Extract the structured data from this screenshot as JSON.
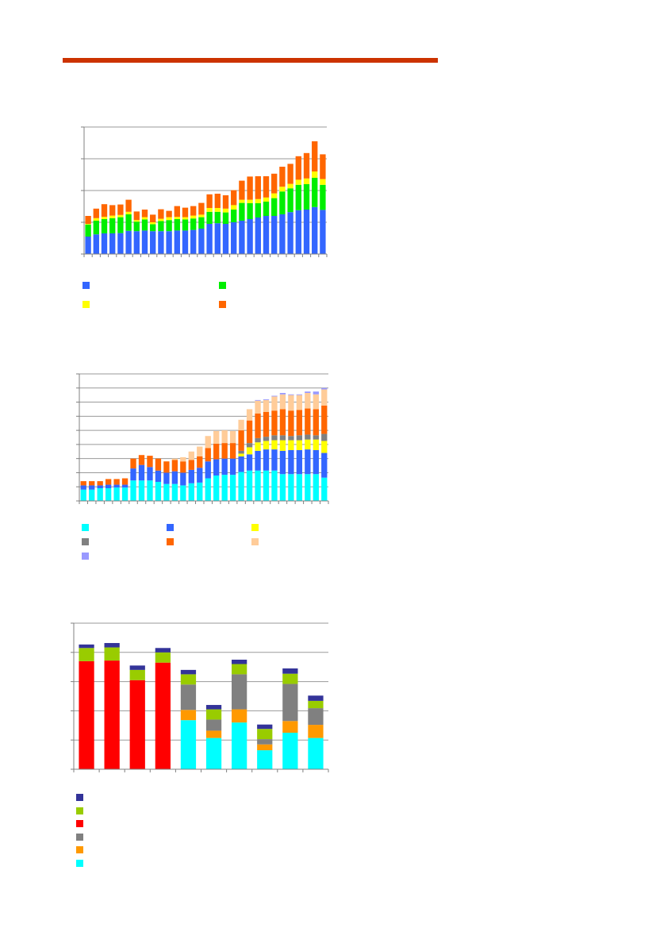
{
  "page": {
    "accent_color": "#cc3300"
  },
  "chart_data": [
    {
      "type": "bar",
      "stacked": true,
      "grid": true,
      "ylim": [
        0,
        4
      ],
      "legend_position": "bottom",
      "legend_ncol": 2,
      "categories": [
        "",
        "",
        "",
        "",
        "",
        "",
        "",
        "",
        "",
        "",
        "",
        "",
        "",
        "",
        "",
        "",
        "",
        "",
        "",
        "",
        "",
        "",
        "",
        "",
        "",
        "",
        "",
        "",
        "",
        ""
      ],
      "series": [
        {
          "color": "#3366ff",
          "values": [
            0.55,
            0.62,
            0.65,
            0.65,
            0.66,
            0.73,
            0.72,
            0.74,
            0.72,
            0.72,
            0.72,
            0.74,
            0.74,
            0.76,
            0.8,
            0.95,
            0.97,
            0.95,
            1.0,
            1.05,
            1.1,
            1.15,
            1.2,
            1.2,
            1.25,
            1.32,
            1.38,
            1.4,
            1.48,
            1.39
          ]
        },
        {
          "color": "#00ee00",
          "values": [
            0.38,
            0.43,
            0.45,
            0.48,
            0.5,
            0.52,
            0.3,
            0.35,
            0.22,
            0.32,
            0.35,
            0.36,
            0.35,
            0.36,
            0.36,
            0.38,
            0.36,
            0.36,
            0.4,
            0.56,
            0.5,
            0.45,
            0.45,
            0.56,
            0.72,
            0.75,
            0.8,
            0.8,
            0.92,
            0.79
          ]
        },
        {
          "color": "#ffff00",
          "values": [
            0.02,
            0.08,
            0.07,
            0.08,
            0.07,
            0.08,
            0.05,
            0.07,
            0.06,
            0.07,
            0.09,
            0.07,
            0.07,
            0.09,
            0.08,
            0.12,
            0.12,
            0.12,
            0.14,
            0.1,
            0.11,
            0.13,
            0.13,
            0.15,
            0.15,
            0.14,
            0.16,
            0.18,
            0.2,
            0.18
          ]
        },
        {
          "color": "#ff6600",
          "values": [
            0.25,
            0.3,
            0.4,
            0.33,
            0.33,
            0.38,
            0.27,
            0.24,
            0.24,
            0.3,
            0.2,
            0.34,
            0.3,
            0.3,
            0.37,
            0.43,
            0.45,
            0.42,
            0.47,
            0.6,
            0.73,
            0.72,
            0.67,
            0.62,
            0.63,
            0.63,
            0.74,
            0.8,
            0.95,
            0.78
          ]
        }
      ],
      "legend": [
        "",
        "",
        "",
        ""
      ]
    },
    {
      "type": "bar",
      "stacked": true,
      "grid": true,
      "ylim": [
        0,
        9
      ],
      "legend_position": "bottom",
      "legend_ncol": 3,
      "categories": [
        "",
        "",
        "",
        "",
        "",
        "",
        "",
        "",
        "",
        "",
        "",
        "",
        "",
        "",
        "",
        "",
        "",
        "",
        "",
        "",
        "",
        "",
        "",
        "",
        "",
        "",
        "",
        "",
        "",
        ""
      ],
      "series": [
        {
          "color": "#00ffff",
          "values": [
            0.8,
            0.8,
            0.9,
            0.9,
            0.95,
            0.95,
            1.45,
            1.45,
            1.45,
            1.35,
            1.2,
            1.2,
            1.1,
            1.25,
            1.3,
            1.6,
            1.8,
            1.85,
            1.85,
            2.05,
            2.15,
            2.15,
            2.15,
            2.15,
            1.9,
            1.9,
            1.9,
            1.9,
            1.9,
            1.65
          ]
        },
        {
          "color": "#3366ff",
          "values": [
            0.3,
            0.3,
            0.2,
            0.25,
            0.2,
            0.2,
            0.85,
            1.1,
            0.95,
            0.8,
            0.8,
            0.9,
            0.9,
            0.95,
            1.05,
            1.2,
            1.15,
            1.15,
            1.15,
            1.1,
            1.15,
            1.4,
            1.5,
            1.5,
            1.65,
            1.7,
            1.7,
            1.75,
            1.7,
            1.75
          ]
        },
        {
          "color": "#ffff00",
          "values": [
            0.0,
            0.0,
            0.0,
            0.0,
            0.0,
            0.0,
            0.0,
            0.0,
            0.0,
            0.0,
            0.0,
            0.0,
            0.0,
            0.0,
            0.0,
            0.0,
            0.0,
            0.0,
            0.0,
            0.2,
            0.5,
            0.6,
            0.6,
            0.65,
            0.75,
            0.7,
            0.7,
            0.7,
            0.75,
            0.85
          ]
        },
        {
          "color": "#808080",
          "values": [
            0.0,
            0.0,
            0.0,
            0.0,
            0.0,
            0.0,
            0.0,
            0.0,
            0.0,
            0.0,
            0.0,
            0.0,
            0.0,
            0.0,
            0.0,
            0.0,
            0.0,
            0.0,
            0.0,
            0.2,
            0.3,
            0.3,
            0.3,
            0.35,
            0.35,
            0.3,
            0.35,
            0.35,
            0.3,
            0.5
          ]
        },
        {
          "color": "#ff6600",
          "values": [
            0.3,
            0.3,
            0.3,
            0.4,
            0.4,
            0.45,
            0.7,
            0.7,
            0.8,
            0.85,
            0.8,
            0.8,
            0.8,
            0.7,
            0.8,
            0.95,
            1.1,
            1.1,
            1.1,
            1.45,
            1.6,
            1.75,
            1.75,
            1.75,
            1.85,
            1.8,
            1.8,
            1.85,
            1.85,
            2.0
          ]
        },
        {
          "color": "#ffcc99",
          "values": [
            0.0,
            0.0,
            0.0,
            0.0,
            0.0,
            0.0,
            0.0,
            0.0,
            0.0,
            0.0,
            0.0,
            0.1,
            0.3,
            0.6,
            0.7,
            0.85,
            0.9,
            0.9,
            0.85,
            0.75,
            0.8,
            0.9,
            0.85,
            1.0,
            1.05,
            1.1,
            1.05,
            1.1,
            1.05,
            1.15
          ]
        },
        {
          "color": "#9999ff",
          "values": [
            0.0,
            0.0,
            0.0,
            0.0,
            0.0,
            0.0,
            0.0,
            0.0,
            0.0,
            0.0,
            0.0,
            0.0,
            0.0,
            0.0,
            0.0,
            0.0,
            0.0,
            0.0,
            0.0,
            0.0,
            0.0,
            0.05,
            0.05,
            0.05,
            0.1,
            0.05,
            0.05,
            0.1,
            0.2,
            0.1
          ]
        }
      ],
      "legend": [
        "",
        "",
        "",
        "",
        "",
        "",
        ""
      ]
    },
    {
      "type": "bar",
      "stacked": true,
      "grid": true,
      "ylim": [
        0,
        5
      ],
      "legend_position": "bottom",
      "legend_ncol": 1,
      "categories": [
        "",
        "",
        "",
        "",
        "",
        "",
        "",
        "",
        "",
        ""
      ],
      "series": [
        {
          "color": "#00ffff",
          "values": [
            0,
            0,
            0,
            0,
            1.68,
            1.07,
            1.6,
            0.65,
            1.25,
            1.07
          ]
        },
        {
          "color": "#ff9900",
          "values": [
            0,
            0,
            0,
            0,
            0.35,
            0.25,
            0.45,
            0.2,
            0.4,
            0.45
          ]
        },
        {
          "color": "#808080",
          "values": [
            0,
            0,
            0,
            0,
            0.87,
            0.38,
            1.2,
            0.18,
            1.27,
            0.57
          ]
        },
        {
          "color": "#ff0000",
          "values": [
            3.7,
            3.72,
            3.05,
            3.65,
            0,
            0,
            0,
            0,
            0,
            0
          ]
        },
        {
          "color": "#99cc00",
          "values": [
            0.45,
            0.45,
            0.35,
            0.35,
            0.35,
            0.35,
            0.35,
            0.35,
            0.35,
            0.25
          ]
        },
        {
          "color": "#333399",
          "values": [
            0.12,
            0.15,
            0.15,
            0.15,
            0.15,
            0.15,
            0.15,
            0.15,
            0.18,
            0.18
          ]
        }
      ],
      "legend_colors": [
        "#333399",
        "#99cc00",
        "#ff0000",
        "#808080",
        "#ff9900",
        "#00ffff"
      ],
      "legend": [
        "",
        "",
        "",
        "",
        "",
        ""
      ]
    }
  ]
}
